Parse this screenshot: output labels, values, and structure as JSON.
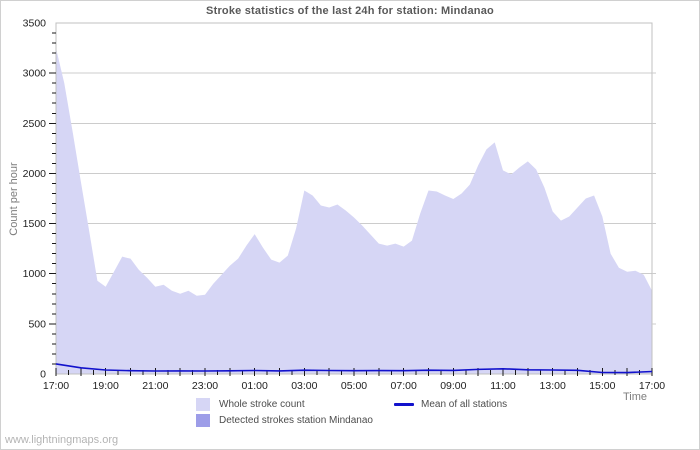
{
  "title": "Stroke statistics of the last 24h for station: Mindanao",
  "watermark": "www.lightningmaps.org",
  "axes": {
    "y_label": "Count per hour",
    "x_label": "Time"
  },
  "legend": [
    {
      "label": "Whole stroke count"
    },
    {
      "label": "Detected strokes station Mindanao"
    },
    {
      "label": "Mean of all stations"
    }
  ],
  "colors": {
    "whole_area": "#d6d6f5",
    "detected_area": "#9d9de8",
    "mean_line": "#1212cc",
    "gridline": "#cccccc",
    "plot_border": "#c0c0c0",
    "tick": "#1a1a1a",
    "tick_label": "#222222"
  },
  "chart_data": {
    "type": "area",
    "title": "Stroke statistics of the last 24h for station: Mindanao",
    "xlabel": "Time",
    "ylabel": "Count per hour",
    "ylim": [
      0,
      3500
    ],
    "x_span_hours": 24,
    "x_start": "17:00",
    "grid": "horizontal",
    "legend_position": "bottom",
    "y_tick_step": 500,
    "y_minor_tick_step": 100,
    "x_label_step_minutes": 120,
    "x_minor_tick_minutes": 30,
    "y_tick_labels": [
      "0",
      "500",
      "1000",
      "1500",
      "2000",
      "2500",
      "3000",
      "3500"
    ],
    "x_tick_labels": [
      "17:00",
      "19:00",
      "21:00",
      "23:00",
      "01:00",
      "03:00",
      "05:00",
      "07:00",
      "09:00",
      "11:00",
      "13:00",
      "15:00",
      "17:00"
    ],
    "series": [
      {
        "name": "Whole stroke count",
        "kind": "area",
        "color": "#d6d6f5",
        "step_minutes": 20,
        "values": [
          3250,
          2900,
          2420,
          1920,
          1430,
          930,
          870,
          1020,
          1170,
          1150,
          1040,
          960,
          870,
          890,
          830,
          800,
          830,
          780,
          790,
          900,
          990,
          1080,
          1150,
          1280,
          1395,
          1260,
          1140,
          1110,
          1180,
          1450,
          1830,
          1780,
          1680,
          1660,
          1690,
          1630,
          1560,
          1480,
          1390,
          1300,
          1280,
          1300,
          1270,
          1330,
          1600,
          1830,
          1820,
          1780,
          1745,
          1800,
          1890,
          2080,
          2240,
          2310,
          2030,
          1990,
          2060,
          2120,
          2040,
          1860,
          1620,
          1530,
          1570,
          1660,
          1750,
          1780,
          1570,
          1200,
          1060,
          1020,
          1030,
          990,
          830
        ]
      },
      {
        "name": "Detected strokes station Mindanao",
        "kind": "area",
        "color": "#9d9de8",
        "step_minutes": 60,
        "values": [
          0,
          0,
          0,
          0,
          0,
          0,
          0,
          0,
          0,
          0,
          0,
          0,
          0,
          0,
          0,
          0,
          0,
          0,
          0,
          0,
          0,
          0,
          0,
          0,
          0
        ]
      },
      {
        "name": "Mean of all stations",
        "kind": "line",
        "color": "#1212cc",
        "step_minutes": 60,
        "values": [
          100,
          62,
          40,
          33,
          30,
          31,
          30,
          32,
          35,
          31,
          38,
          35,
          33,
          34,
          33,
          38,
          36,
          46,
          52,
          42,
          40,
          37,
          15,
          14,
          25
        ]
      }
    ]
  }
}
